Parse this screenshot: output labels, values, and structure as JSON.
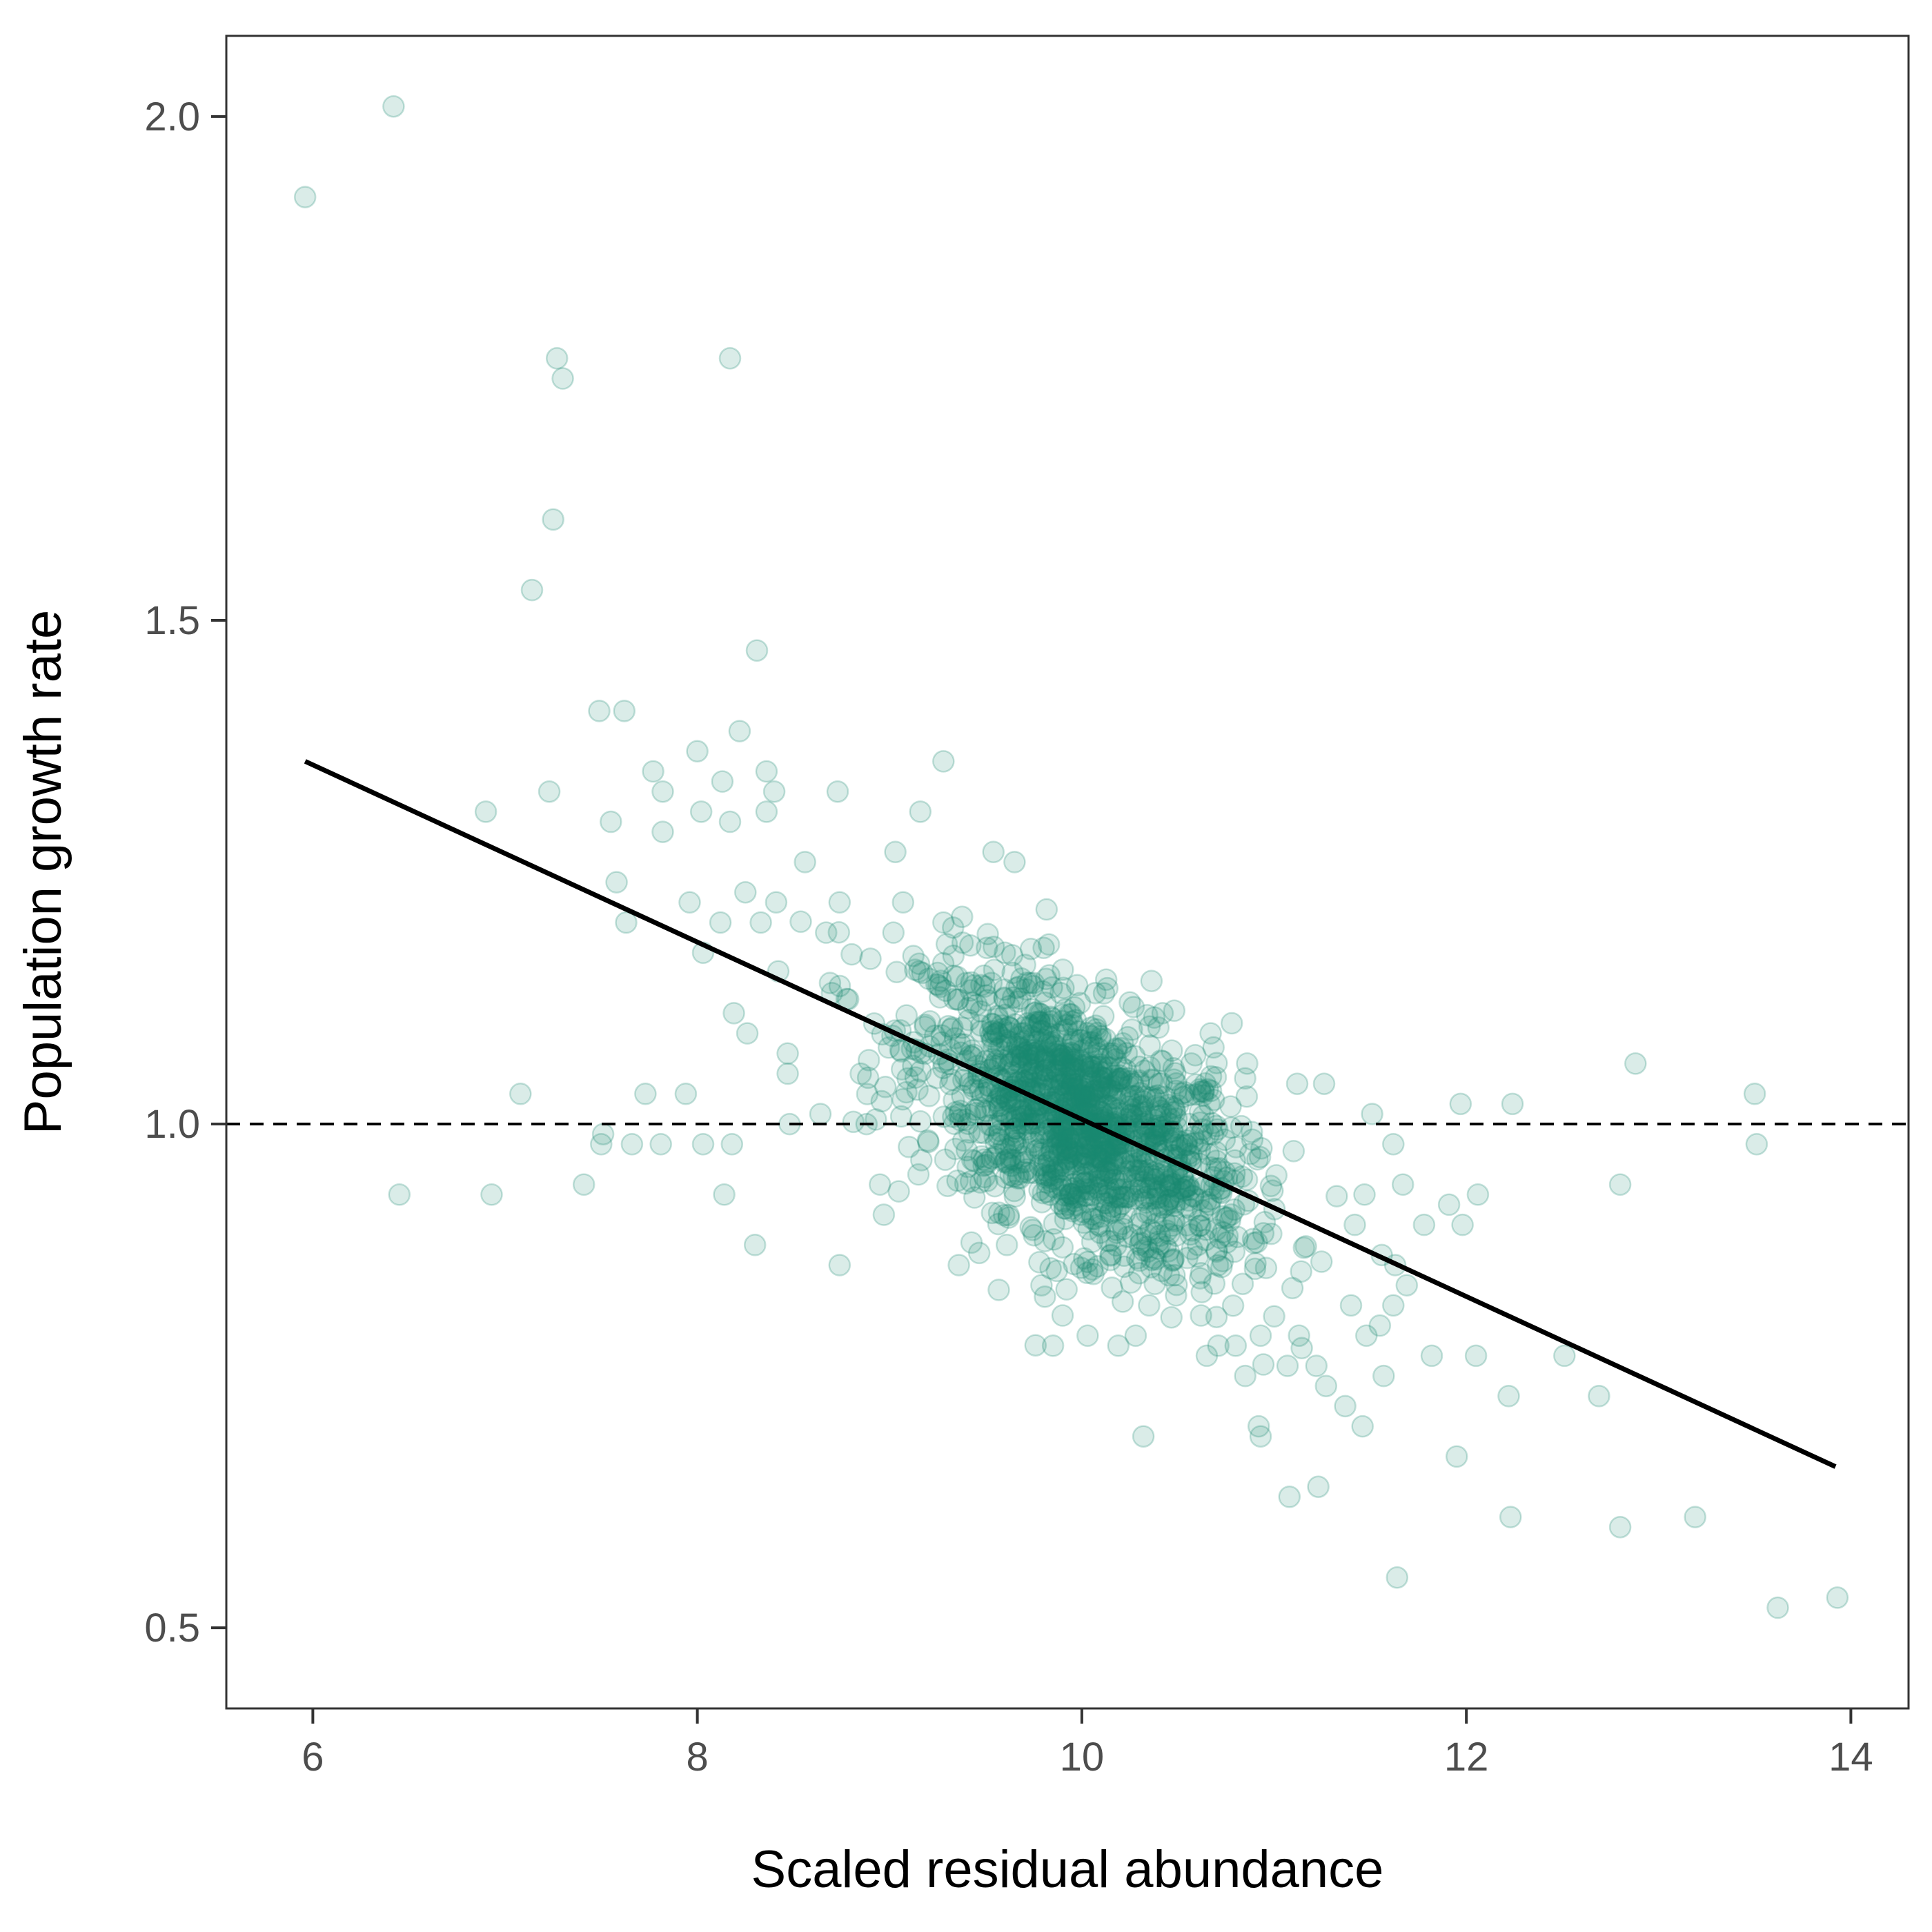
{
  "chart_data": {
    "type": "scatter",
    "title": "",
    "xlabel": "Scaled residual abundance",
    "ylabel": "Population growth rate",
    "xlim": [
      5.55,
      14.3
    ],
    "ylim": [
      0.42,
      2.08
    ],
    "x_ticks": [
      6,
      8,
      10,
      12,
      14
    ],
    "x_tick_labels": [
      "6",
      "8",
      "10",
      "12",
      "14"
    ],
    "y_ticks": [
      0.5,
      1.0,
      1.5,
      2.0
    ],
    "y_tick_labels": [
      "0.5",
      "1.0",
      "1.5",
      "2.0"
    ],
    "grid": false,
    "legend": "none",
    "point_color": "#1b8a72",
    "point_opacity": 0.16,
    "reference_line": {
      "y": 1.0,
      "style": "dashed",
      "color": "#000000"
    },
    "fit_line": {
      "x": [
        5.96,
        13.92
      ],
      "y": [
        1.36,
        0.66
      ],
      "color": "#000000"
    },
    "series": [
      {
        "points": [
          [
            5.96,
            1.92
          ],
          [
            6.42,
            2.01
          ],
          [
            7.27,
            1.76
          ],
          [
            7.3,
            1.74
          ],
          [
            8.17,
            1.76
          ],
          [
            7.25,
            1.6
          ],
          [
            7.14,
            1.53
          ],
          [
            8.31,
            1.47
          ],
          [
            7.49,
            1.41
          ],
          [
            7.62,
            1.41
          ],
          [
            8.0,
            1.37
          ],
          [
            8.22,
            1.39
          ],
          [
            9.28,
            1.36
          ],
          [
            7.77,
            1.35
          ],
          [
            8.13,
            1.34
          ],
          [
            8.36,
            1.35
          ],
          [
            8.4,
            1.33
          ],
          [
            7.23,
            1.33
          ],
          [
            7.82,
            1.33
          ],
          [
            8.73,
            1.33
          ],
          [
            6.9,
            1.31
          ],
          [
            8.02,
            1.31
          ],
          [
            8.17,
            1.3
          ],
          [
            8.36,
            1.31
          ],
          [
            7.55,
            1.3
          ],
          [
            7.82,
            1.29
          ],
          [
            9.16,
            1.31
          ],
          [
            9.54,
            1.27
          ],
          [
            9.65,
            1.26
          ],
          [
            9.03,
            1.27
          ],
          [
            8.56,
            1.26
          ],
          [
            7.58,
            1.24
          ],
          [
            8.25,
            1.23
          ],
          [
            7.96,
            1.22
          ],
          [
            9.07,
            1.22
          ],
          [
            7.63,
            1.2
          ],
          [
            8.12,
            1.2
          ],
          [
            8.74,
            1.22
          ],
          [
            9.02,
            1.19
          ],
          [
            8.41,
            1.22
          ],
          [
            8.33,
            1.2
          ],
          [
            8.03,
            1.17
          ],
          [
            9.28,
            1.2
          ],
          [
            8.67,
            1.19
          ],
          [
            7.08,
            1.03
          ],
          [
            7.73,
            1.03
          ],
          [
            7.94,
            1.03
          ],
          [
            7.51,
            0.99
          ],
          [
            7.5,
            0.98
          ],
          [
            7.66,
            0.98
          ],
          [
            7.81,
            0.98
          ],
          [
            8.03,
            0.98
          ],
          [
            8.18,
            0.98
          ],
          [
            8.48,
            1.0
          ],
          [
            8.64,
            1.01
          ],
          [
            8.88,
            1.0
          ],
          [
            6.45,
            0.93
          ],
          [
            6.93,
            0.93
          ],
          [
            7.41,
            0.94
          ],
          [
            8.14,
            0.93
          ],
          [
            8.3,
            0.88
          ],
          [
            8.74,
            0.86
          ],
          [
            8.19,
            1.11
          ],
          [
            8.26,
            1.09
          ],
          [
            8.47,
            1.07
          ],
          [
            8.47,
            1.05
          ],
          [
            8.69,
            1.14
          ],
          [
            8.7,
            1.13
          ],
          [
            8.85,
            1.05
          ],
          [
            8.95,
            0.94
          ],
          [
            8.97,
            0.91
          ],
          [
            9.15,
            0.95
          ],
          [
            9.36,
            0.86
          ],
          [
            9.61,
            0.88
          ],
          [
            9.79,
            0.84
          ],
          [
            9.9,
            0.81
          ],
          [
            9.85,
            0.78
          ],
          [
            10.03,
            0.79
          ],
          [
            10.19,
            0.78
          ],
          [
            10.28,
            0.79
          ],
          [
            10.35,
            0.82
          ],
          [
            10.49,
            0.83
          ],
          [
            10.62,
            0.81
          ],
          [
            10.65,
            0.77
          ],
          [
            10.71,
            0.78
          ],
          [
            10.85,
            0.75
          ],
          [
            10.8,
            0.78
          ],
          [
            10.93,
            0.79
          ],
          [
            11.07,
            0.76
          ],
          [
            11.13,
            0.79
          ],
          [
            11.22,
            0.76
          ],
          [
            11.27,
            0.74
          ],
          [
            11.37,
            0.72
          ],
          [
            11.46,
            0.7
          ],
          [
            11.57,
            0.75
          ],
          [
            11.4,
            0.82
          ],
          [
            11.48,
            0.79
          ],
          [
            11.55,
            0.8
          ],
          [
            11.62,
            0.82
          ],
          [
            11.69,
            0.84
          ],
          [
            11.82,
            0.77
          ],
          [
            12.05,
            0.77
          ],
          [
            11.95,
            0.67
          ],
          [
            12.22,
            0.73
          ],
          [
            12.51,
            0.77
          ],
          [
            12.69,
            0.73
          ],
          [
            12.23,
            0.61
          ],
          [
            12.8,
            0.6
          ],
          [
            13.19,
            0.61
          ],
          [
            13.62,
            0.52
          ],
          [
            13.93,
            0.53
          ],
          [
            11.64,
            0.55
          ],
          [
            11.08,
            0.63
          ],
          [
            11.23,
            0.64
          ],
          [
            10.92,
            0.7
          ],
          [
            10.93,
            0.69
          ],
          [
            10.32,
            0.69
          ],
          [
            11.67,
            0.94
          ],
          [
            11.78,
            0.9
          ],
          [
            11.91,
            0.92
          ],
          [
            11.98,
            0.9
          ],
          [
            12.06,
            0.93
          ],
          [
            11.97,
            1.02
          ],
          [
            12.24,
            1.02
          ],
          [
            12.8,
            0.94
          ],
          [
            12.88,
            1.06
          ],
          [
            13.5,
            1.03
          ],
          [
            13.51,
            0.98
          ],
          [
            11.12,
            1.04
          ],
          [
            11.26,
            1.04
          ],
          [
            11.51,
            1.01
          ],
          [
            11.62,
            0.98
          ],
          [
            11.47,
            0.93
          ],
          [
            11.42,
            0.9
          ],
          [
            11.56,
            0.87
          ],
          [
            11.63,
            0.86
          ],
          [
            10.42,
            1.11
          ],
          [
            10.67,
            1.09
          ],
          [
            10.78,
            1.1
          ],
          [
            10.86,
            1.06
          ],
          [
            10.57,
            1.06
          ],
          [
            9.4,
            1.14
          ],
          [
            9.53,
            1.14
          ],
          [
            9.64,
            1.15
          ],
          [
            9.75,
            1.14
          ],
          [
            9.89,
            1.13
          ],
          [
            9.99,
            1.12
          ],
          [
            10.07,
            1.13
          ],
          [
            9.17,
            1.15
          ],
          [
            9.25,
            1.15
          ],
          [
            9.38,
            1.18
          ],
          [
            9.6,
            1.17
          ]
        ],
        "cluster": {
          "center": [
            10.0,
            1.0
          ],
          "slope": -0.09,
          "spread_x": 0.42,
          "spread_y": 0.06,
          "count": 1500
        }
      }
    ]
  }
}
